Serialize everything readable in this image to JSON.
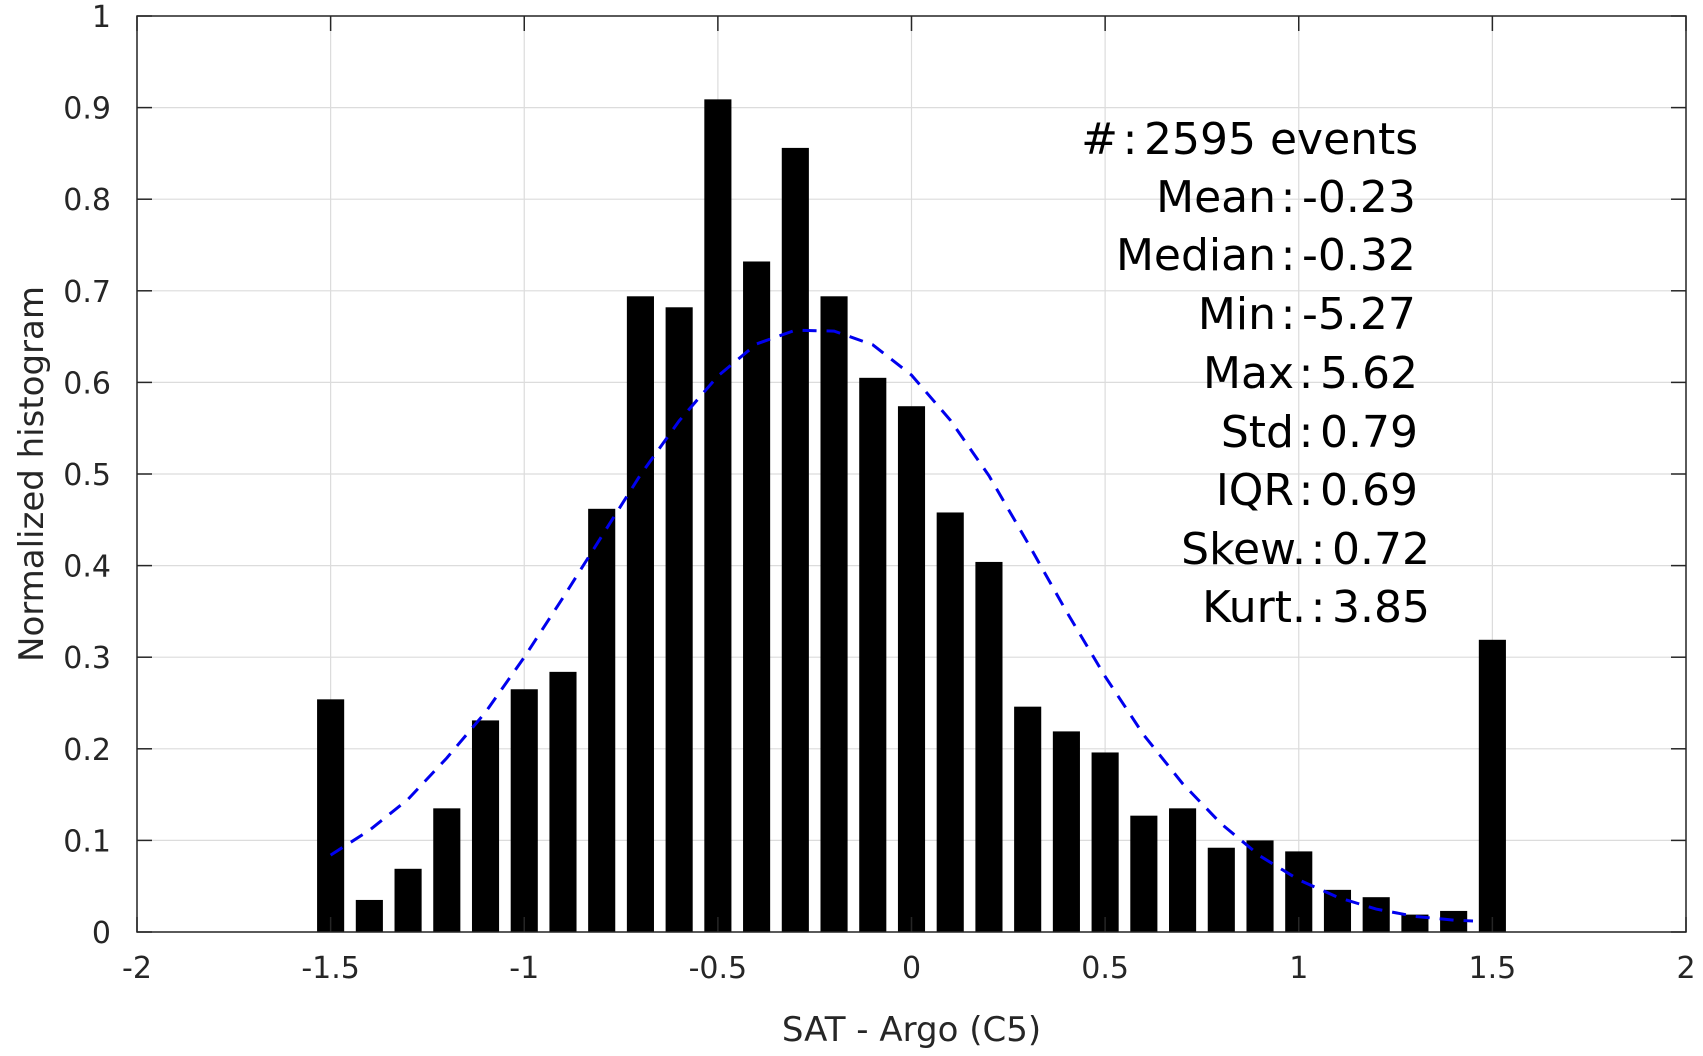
{
  "chart_data": {
    "type": "bar",
    "xlabel": "SAT - Argo (C5)",
    "ylabel": "Normalized histogram",
    "xlim": [
      -2,
      2
    ],
    "ylim": [
      0,
      1
    ],
    "xticks": [
      "-2",
      "-1.5",
      "-1",
      "-0.5",
      "0",
      "0.5",
      "1",
      "1.5",
      "2"
    ],
    "yticks": [
      "0",
      "0.1",
      "0.2",
      "0.3",
      "0.4",
      "0.5",
      "0.6",
      "0.7",
      "0.8",
      "0.9",
      "1"
    ],
    "grid": true,
    "bar_color": "#000000",
    "bars": {
      "x": [
        -1.5,
        -1.4,
        -1.3,
        -1.2,
        -1.1,
        -1.0,
        -0.9,
        -0.8,
        -0.7,
        -0.6,
        -0.5,
        -0.4,
        -0.3,
        -0.2,
        -0.1,
        0.0,
        0.1,
        0.2,
        0.3,
        0.4,
        0.5,
        0.6,
        0.7,
        0.8,
        0.9,
        1.0,
        1.1,
        1.2,
        1.3,
        1.4,
        1.5
      ],
      "values": [
        0.254,
        0.035,
        0.069,
        0.135,
        0.231,
        0.265,
        0.284,
        0.462,
        0.694,
        0.682,
        0.909,
        0.732,
        0.856,
        0.694,
        0.605,
        0.574,
        0.458,
        0.404,
        0.246,
        0.219,
        0.196,
        0.127,
        0.135,
        0.092,
        0.1,
        0.088,
        0.046,
        0.038,
        0.019,
        0.023,
        0.319
      ],
      "width": 0.07
    },
    "fit_curve": {
      "style": "dashed",
      "color": "#0000ee",
      "x": [
        -1.5,
        -1.4,
        -1.3,
        -1.2,
        -1.1,
        -1.0,
        -0.9,
        -0.8,
        -0.7,
        -0.6,
        -0.5,
        -0.4,
        -0.3,
        -0.2,
        -0.1,
        0.0,
        0.1,
        0.2,
        0.3,
        0.4,
        0.5,
        0.6,
        0.7,
        0.8,
        0.9,
        1.0,
        1.1,
        1.2,
        1.3,
        1.4,
        1.45
      ],
      "y": [
        0.084,
        0.111,
        0.145,
        0.19,
        0.24,
        0.3,
        0.365,
        0.432,
        0.499,
        0.558,
        0.607,
        0.642,
        0.657,
        0.656,
        0.641,
        0.608,
        0.559,
        0.498,
        0.425,
        0.35,
        0.279,
        0.215,
        0.162,
        0.118,
        0.083,
        0.057,
        0.038,
        0.025,
        0.017,
        0.013,
        0.012
      ]
    },
    "annotations": [
      "#  : 2595 events",
      "Mean : -0.23",
      "Median : -0.32",
      "Min : -5.27",
      "Max : 5.62",
      "Std : 0.79",
      "IQR : 0.69",
      "Skew. : 0.72",
      "Kurt. : 3.85"
    ]
  }
}
